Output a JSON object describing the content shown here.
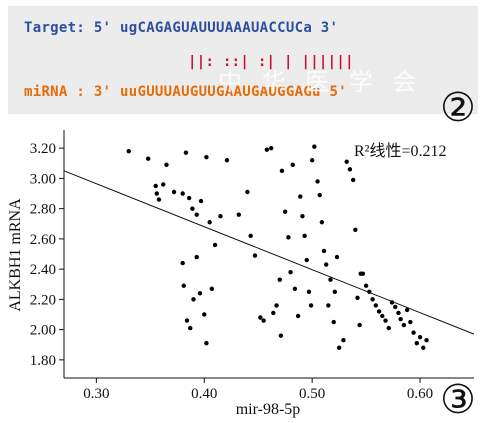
{
  "alignment": {
    "target_line": "Target: 5' ugCAGAGUAUUUAAAUACCUCa 3'",
    "pair_line": "||: ::| :| | ||||||",
    "mirna_line": "miRNA : 3' uuGUUUAUGUUGAAUGAUGGAGu 5'",
    "watermark": "中 华 医 学 会",
    "target_color": "#2d4f9e",
    "pair_color": "#c8102e",
    "mirna_color": "#e56c0a"
  },
  "panel_labels": {
    "upper": "②",
    "lower": "③"
  },
  "chart_data": {
    "type": "scatter",
    "xlabel": "mir-98-5p",
    "ylabel": "ALKBH1 mRNA",
    "xlim": [
      0.27,
      0.65
    ],
    "ylim": [
      1.68,
      3.32
    ],
    "x_ticks": [
      0.3,
      0.4,
      0.5,
      0.6
    ],
    "x_tick_labels": [
      "0.30",
      "0.40",
      "0.50",
      "0.60"
    ],
    "y_ticks": [
      1.8,
      2.0,
      2.2,
      2.4,
      2.6,
      2.8,
      3.0,
      3.2
    ],
    "y_tick_labels": [
      "1.80",
      "2.00",
      "2.20",
      "2.40",
      "2.60",
      "2.80",
      "3.00",
      "3.20"
    ],
    "annotation": "R²线性=0.212",
    "regression_line": {
      "x": [
        0.27,
        0.65
      ],
      "y": [
        3.05,
        1.97
      ]
    },
    "points": [
      [
        0.33,
        3.18
      ],
      [
        0.348,
        3.13
      ],
      [
        0.355,
        2.95
      ],
      [
        0.356,
        2.9
      ],
      [
        0.358,
        2.86
      ],
      [
        0.362,
        2.96
      ],
      [
        0.365,
        3.09
      ],
      [
        0.372,
        2.91
      ],
      [
        0.38,
        2.9
      ],
      [
        0.383,
        3.17
      ],
      [
        0.386,
        2.87
      ],
      [
        0.389,
        2.8
      ],
      [
        0.393,
        2.76
      ],
      [
        0.397,
        2.85
      ],
      [
        0.402,
        3.14
      ],
      [
        0.405,
        2.71
      ],
      [
        0.41,
        2.56
      ],
      [
        0.415,
        2.75
      ],
      [
        0.421,
        3.12
      ],
      [
        0.432,
        2.76
      ],
      [
        0.38,
        2.44
      ],
      [
        0.381,
        2.29
      ],
      [
        0.384,
        2.06
      ],
      [
        0.387,
        2.01
      ],
      [
        0.39,
        2.2
      ],
      [
        0.393,
        2.48
      ],
      [
        0.396,
        2.24
      ],
      [
        0.4,
        2.1
      ],
      [
        0.402,
        1.91
      ],
      [
        0.407,
        2.27
      ],
      [
        0.44,
        2.91
      ],
      [
        0.443,
        2.62
      ],
      [
        0.447,
        2.49
      ],
      [
        0.452,
        2.08
      ],
      [
        0.455,
        2.06
      ],
      [
        0.458,
        3.19
      ],
      [
        0.462,
        3.2
      ],
      [
        0.464,
        2.11
      ],
      [
        0.467,
        2.16
      ],
      [
        0.47,
        2.33
      ],
      [
        0.471,
        1.96
      ],
      [
        0.472,
        3.05
      ],
      [
        0.475,
        2.78
      ],
      [
        0.478,
        2.61
      ],
      [
        0.48,
        2.38
      ],
      [
        0.482,
        3.09
      ],
      [
        0.484,
        2.27
      ],
      [
        0.487,
        2.09
      ],
      [
        0.489,
        2.88
      ],
      [
        0.491,
        2.75
      ],
      [
        0.493,
        2.62
      ],
      [
        0.495,
        2.46
      ],
      [
        0.497,
        2.25
      ],
      [
        0.499,
        2.16
      ],
      [
        0.5,
        3.12
      ],
      [
        0.502,
        3.21
      ],
      [
        0.505,
        2.98
      ],
      [
        0.507,
        2.89
      ],
      [
        0.509,
        2.71
      ],
      [
        0.511,
        2.52
      ],
      [
        0.513,
        2.43
      ],
      [
        0.515,
        2.16
      ],
      [
        0.517,
        2.33
      ],
      [
        0.52,
        2.05
      ],
      [
        0.521,
        2.25
      ],
      [
        0.523,
        2.48
      ],
      [
        0.525,
        1.88
      ],
      [
        0.529,
        1.93
      ],
      [
        0.532,
        3.11
      ],
      [
        0.535,
        3.06
      ],
      [
        0.538,
        2.99
      ],
      [
        0.54,
        2.66
      ],
      [
        0.542,
        2.21
      ],
      [
        0.544,
        2.03
      ],
      [
        0.545,
        2.37
      ],
      [
        0.547,
        2.37
      ],
      [
        0.55,
        2.29
      ],
      [
        0.553,
        2.25
      ],
      [
        0.556,
        2.2
      ],
      [
        0.559,
        2.16
      ],
      [
        0.562,
        2.12
      ],
      [
        0.565,
        2.09
      ],
      [
        0.568,
        2.06
      ],
      [
        0.571,
        2.01
      ],
      [
        0.574,
        2.18
      ],
      [
        0.577,
        2.15
      ],
      [
        0.58,
        2.11
      ],
      [
        0.582,
        2.07
      ],
      [
        0.585,
        2.03
      ],
      [
        0.588,
        2.13
      ],
      [
        0.591,
        2.05
      ],
      [
        0.594,
        1.98
      ],
      [
        0.597,
        1.91
      ],
      [
        0.6,
        1.95
      ],
      [
        0.603,
        1.88
      ],
      [
        0.606,
        1.93
      ]
    ]
  }
}
